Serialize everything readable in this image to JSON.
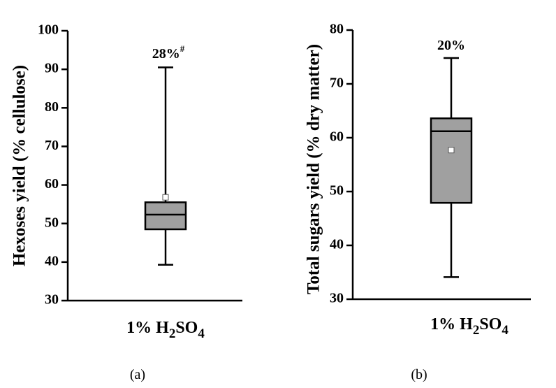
{
  "chart_data": [
    {
      "panel_label": "(a)",
      "type": "box",
      "ylabel": "Hexoses yield (% cellulose)",
      "ylim": [
        30,
        100
      ],
      "yticks": [
        30,
        40,
        50,
        60,
        70,
        80,
        90,
        100
      ],
      "categories": [
        "1% H2SO4"
      ],
      "category_parts": {
        "base": "1% H",
        "sub1": "2",
        "mid": "SO",
        "sub2": "4"
      },
      "annotation": {
        "text": "28%",
        "superscript": "#"
      },
      "box": {
        "min": 39.3,
        "q1": 48.5,
        "median": 52.3,
        "q3": 55.5,
        "max": 90.5,
        "mean": 56.8
      },
      "colors": {
        "box_fill": "#a0a0a0",
        "stroke": "#000000",
        "mean_marker": "#ffffff"
      }
    },
    {
      "panel_label": "(b)",
      "type": "box",
      "ylabel": "Total sugars yield (% dry matter)",
      "ylim": [
        30,
        80
      ],
      "yticks": [
        30,
        40,
        50,
        60,
        70,
        80
      ],
      "categories": [
        "1% H2SO4"
      ],
      "category_parts": {
        "base": "1% H",
        "sub1": "2",
        "mid": "SO",
        "sub2": "4"
      },
      "annotation": {
        "text": "20%",
        "superscript": ""
      },
      "box": {
        "min": 34.1,
        "q1": 47.9,
        "median": 61.2,
        "q3": 63.6,
        "max": 74.8,
        "mean": 57.7
      },
      "colors": {
        "box_fill": "#a0a0a0",
        "stroke": "#000000",
        "mean_marker": "#ffffff"
      }
    }
  ]
}
